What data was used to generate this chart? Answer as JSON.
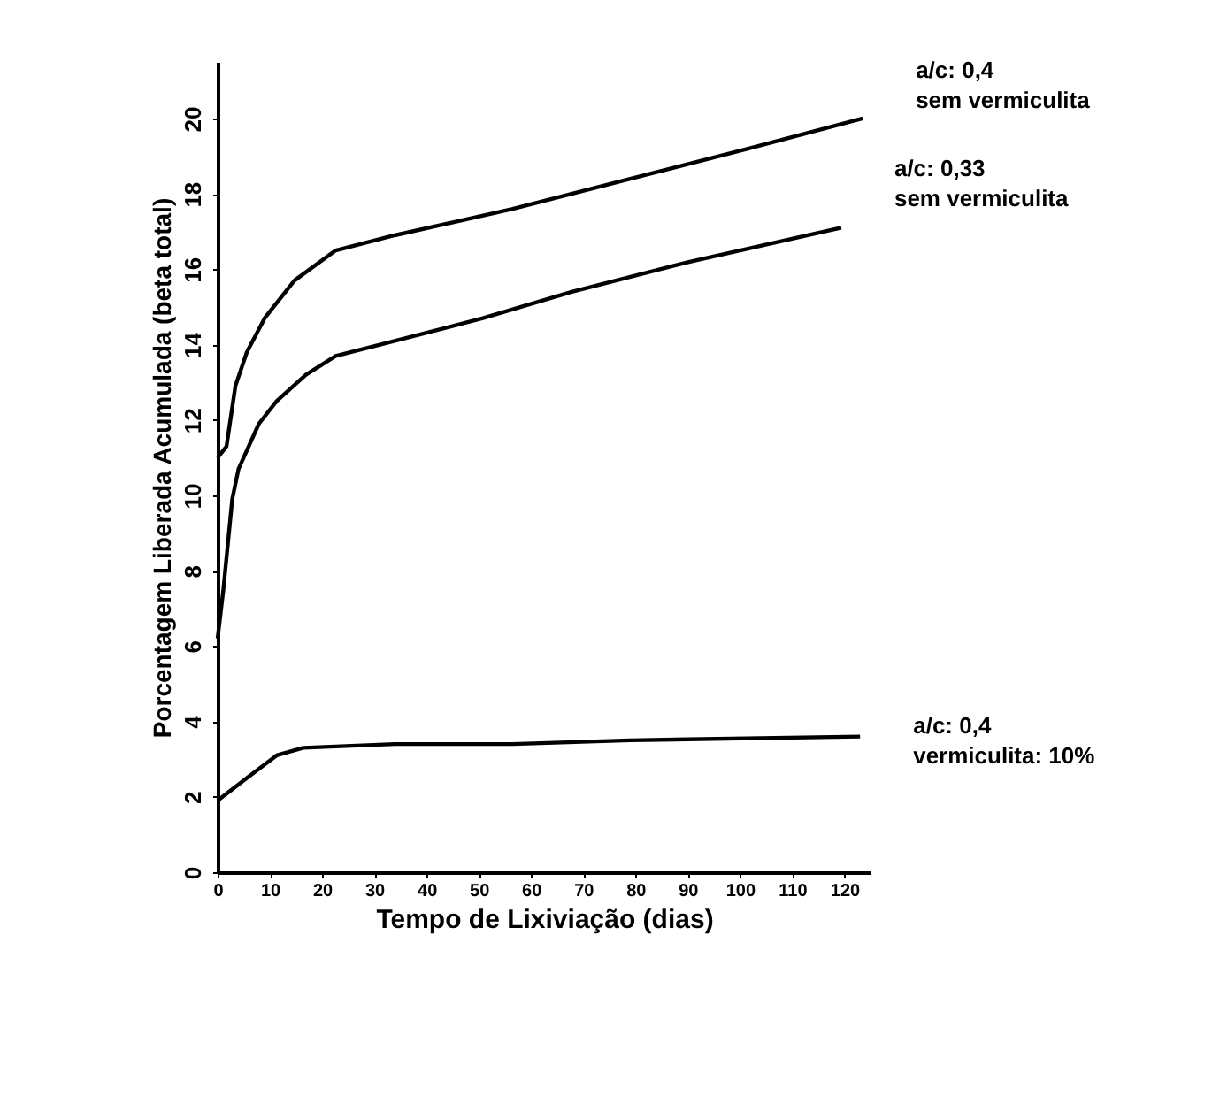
{
  "chart_data": {
    "type": "line",
    "xlabel": "Tempo de Lixiviação (dias)",
    "ylabel": "Porcentagem Liberada Acumulada (beta total)",
    "xlim": [
      0,
      125
    ],
    "ylim": [
      0,
      21.5
    ],
    "xticks": [
      0,
      10,
      20,
      30,
      40,
      50,
      60,
      70,
      80,
      90,
      100,
      110,
      120
    ],
    "yticks": [
      0,
      2,
      4,
      6,
      8,
      10,
      12,
      14,
      16,
      18,
      20
    ],
    "grid": false,
    "legend": false,
    "marker": "none",
    "line_style": "solid",
    "series": [
      {
        "name": "a/c: 0,4\nsem vermiculita",
        "color": "#000000",
        "x": [
          0,
          1.7,
          3.4,
          5.6,
          9,
          14.7,
          22.6,
          33.9,
          56.5,
          79,
          101.7,
          123.5
        ],
        "values": [
          11.0,
          11.3,
          12.9,
          13.8,
          14.7,
          15.7,
          16.5,
          16.9,
          17.6,
          18.4,
          19.2,
          20.0
        ]
      },
      {
        "name": "a/c: 0,33\nsem vermiculita",
        "color": "#000000",
        "x": [
          0,
          1.1,
          2.8,
          4,
          7.9,
          11.3,
          16.9,
          22.6,
          33.9,
          50.8,
          67.8,
          90.4,
          119.4
        ],
        "values": [
          6.2,
          7.5,
          9.9,
          10.7,
          11.9,
          12.5,
          13.2,
          13.7,
          14.1,
          14.7,
          15.4,
          16.2,
          17.1
        ]
      },
      {
        "name": "a/c: 0,4\nvermiculita: 10%",
        "color": "#000000",
        "x": [
          0,
          5.6,
          11.3,
          16.4,
          33.9,
          56.5,
          79,
          123
        ],
        "values": [
          1.9,
          2.5,
          3.1,
          3.3,
          3.4,
          3.4,
          3.5,
          3.6
        ]
      }
    ]
  }
}
